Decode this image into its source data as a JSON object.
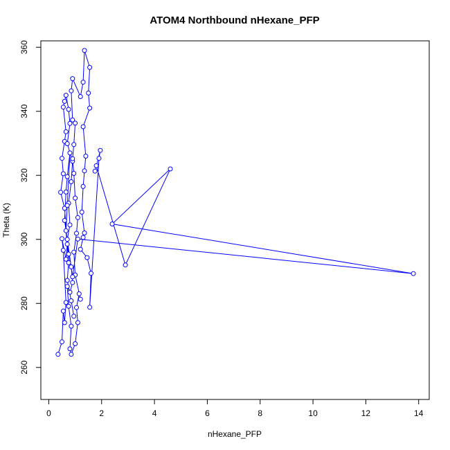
{
  "chart_data": {
    "type": "line",
    "title": "ATOM4 Northbound nHexane_PFP",
    "xlabel": "nHexane_PFP",
    "ylabel": "Theta (K)",
    "xlim": [
      -0.3,
      14.4
    ],
    "ylim": [
      250,
      362
    ],
    "xticks": [
      "0",
      "2",
      "4",
      "6",
      "8",
      "10",
      "12",
      "14"
    ],
    "yticks": [
      "260",
      "280",
      "300",
      "320",
      "340",
      "360"
    ],
    "grid": false,
    "legend": "none",
    "series_color": "#0000ff",
    "markers": "open-circle",
    "points": [
      [
        0.35,
        264.1
      ],
      [
        0.5,
        268.0
      ],
      [
        0.55,
        277.6
      ],
      [
        0.6,
        274.0
      ],
      [
        0.65,
        280.3
      ],
      [
        0.55,
        296.6
      ],
      [
        0.5,
        300.2
      ],
      [
        0.65,
        293.8
      ],
      [
        0.7,
        298.5
      ],
      [
        0.6,
        309.7
      ],
      [
        0.45,
        314.7
      ],
      [
        0.55,
        320.5
      ],
      [
        0.5,
        325.3
      ],
      [
        0.6,
        330.6
      ],
      [
        0.65,
        333.6
      ],
      [
        0.55,
        341.3
      ],
      [
        0.6,
        343.1
      ],
      [
        0.65,
        345.0
      ],
      [
        0.75,
        340.6
      ],
      [
        0.8,
        336.2
      ],
      [
        0.7,
        329.9
      ],
      [
        0.9,
        324.4
      ],
      [
        0.85,
        318.0
      ],
      [
        0.75,
        311.3
      ],
      [
        0.8,
        304.5
      ],
      [
        0.7,
        300.0
      ],
      [
        0.75,
        295.4
      ],
      [
        0.85,
        291.4
      ],
      [
        0.9,
        286.5
      ],
      [
        0.8,
        283.5
      ],
      [
        0.7,
        285.3
      ],
      [
        0.75,
        279.1
      ],
      [
        0.85,
        272.9
      ],
      [
        0.8,
        265.8
      ],
      [
        0.85,
        264.1
      ],
      [
        1.0,
        267.4
      ],
      [
        1.1,
        274.0
      ],
      [
        1.05,
        278.7
      ],
      [
        1.15,
        283.0
      ],
      [
        1.2,
        281.3
      ],
      [
        1.0,
        288.9
      ],
      [
        0.95,
        296.0
      ],
      [
        1.05,
        301.9
      ],
      [
        1.1,
        306.8
      ],
      [
        1.0,
        312.9
      ],
      [
        0.95,
        320.6
      ],
      [
        0.9,
        325.2
      ],
      [
        0.95,
        329.6
      ],
      [
        1.0,
        336.3
      ],
      [
        0.9,
        337.3
      ],
      [
        0.85,
        346.4
      ],
      [
        0.9,
        350.2
      ],
      [
        1.2,
        344.6
      ],
      [
        1.3,
        349.1
      ],
      [
        1.35,
        359.0
      ],
      [
        1.55,
        353.7
      ],
      [
        1.5,
        345.7
      ],
      [
        1.55,
        341.0
      ],
      [
        1.3,
        335.2
      ],
      [
        1.4,
        326.0
      ],
      [
        1.35,
        321.4
      ],
      [
        1.3,
        316.5
      ],
      [
        1.25,
        308.5
      ],
      [
        1.35,
        302.0
      ],
      [
        1.3,
        300.6
      ],
      [
        1.2,
        296.9
      ],
      [
        1.45,
        294.3
      ],
      [
        1.6,
        289.4
      ],
      [
        1.55,
        278.8
      ],
      [
        1.9,
        325.3
      ],
      [
        1.95,
        327.8
      ],
      [
        1.75,
        321.3
      ],
      [
        1.8,
        323.0
      ],
      [
        2.9,
        292.0
      ],
      [
        4.6,
        322.0
      ],
      [
        2.4,
        304.8
      ],
      [
        13.8,
        289.3
      ],
      [
        1.1,
        300.1
      ],
      [
        0.9,
        288.3
      ],
      [
        0.6,
        305.9
      ],
      [
        0.65,
        314.8
      ],
      [
        0.7,
        319.6
      ],
      [
        0.8,
        327.0
      ],
      [
        0.7,
        310.6
      ],
      [
        0.65,
        302.7
      ],
      [
        0.75,
        292.7
      ],
      [
        0.7,
        287.2
      ],
      [
        0.85,
        280.8
      ],
      [
        0.95,
        276.0
      ]
    ]
  }
}
